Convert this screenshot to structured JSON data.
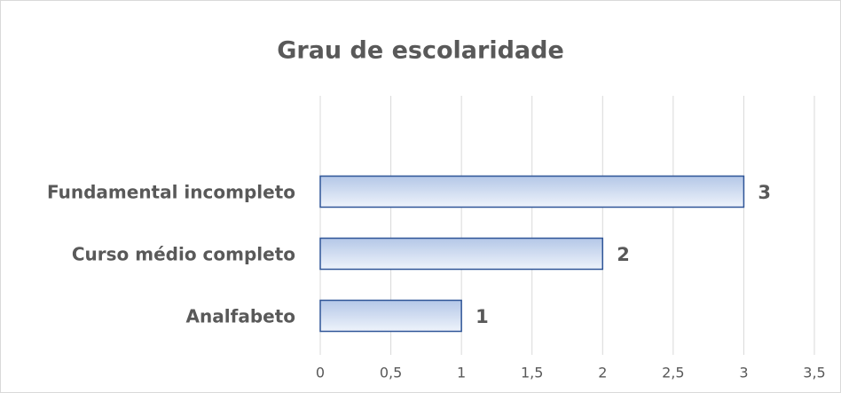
{
  "chart_data": {
    "type": "hbar",
    "title": "Grau de escolaridade",
    "categories": [
      "Fundamental incompleto",
      "Curso médio completo",
      "Analfabeto"
    ],
    "values": [
      3,
      2,
      1
    ],
    "color": "#2f5597",
    "xlim": [
      0,
      3.5
    ],
    "xticks": [
      0,
      {
        "value": 0.5,
        "label": "0,5"
      },
      1,
      {
        "value": 1.5,
        "label": "1,5"
      },
      2,
      {
        "value": 2.5,
        "label": "2,5"
      },
      3,
      {
        "value": 3.5,
        "label": "3,5"
      }
    ],
    "grid": true
  }
}
